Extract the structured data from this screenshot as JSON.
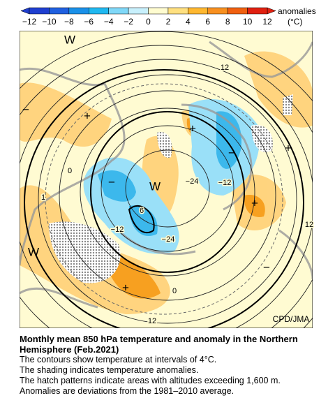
{
  "colorbar": {
    "ticks": [
      "−12",
      "−10",
      "−8",
      "−6",
      "−4",
      "−2",
      "0",
      "2",
      "4",
      "6",
      "8",
      "10",
      "12"
    ],
    "title": "anomalies",
    "unit": "(°C)"
  },
  "map": {
    "labels": [
      "W",
      "12",
      "+",
      "−",
      "0",
      "1",
      "−",
      "W",
      "−24",
      "−12",
      "+",
      "+",
      "−",
      "+",
      "6",
      "−12",
      "−24",
      "12",
      "W",
      "+",
      "0",
      "−",
      "12"
    ],
    "credit": "CPD/JMA"
  },
  "caption": {
    "title": [
      "Monthly mean 850 hPa temperature and anomaly in the Northern",
      "Hemisphere (Feb.2021)"
    ],
    "lines": [
      "The contours show temperature at intervals of 4°C.",
      "The shading indicates temperature anomalies.",
      "The hatch patterns indicate areas with altitudes exceeding 1,600 m.",
      "Anomalies are deviations from the 1981–2010 average."
    ]
  }
}
